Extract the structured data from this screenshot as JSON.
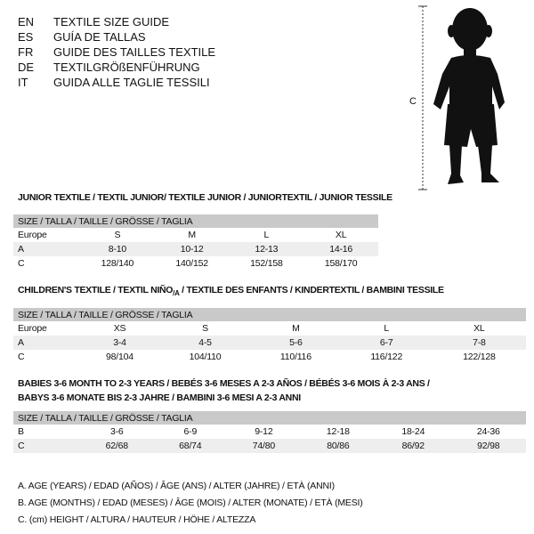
{
  "header": {
    "languages": [
      {
        "code": "EN",
        "title": "TEXTILE SIZE GUIDE"
      },
      {
        "code": "ES",
        "title": "GUÍA DE TALLAS"
      },
      {
        "code": "FR",
        "title": "GUIDE DES TAILLES TEXTILE"
      },
      {
        "code": "DE",
        "title": "TEXTILGRÖßENFÜHRUNG"
      },
      {
        "code": "IT",
        "title": "GUIDA ALLE TAGLIE TESSILI"
      }
    ]
  },
  "figure": {
    "measure_label": "C"
  },
  "junior": {
    "title": "JUNIOR TEXTILE / TEXTIL JUNIOR/ TEXTILE JUNIOR / JUNIORTEXTIL / JUNIOR TESSILE",
    "header": "SIZE / TALLA / TAILLE / GRÖSSE / TAGLIA",
    "rows": [
      {
        "label": "Europe",
        "values": [
          "S",
          "M",
          "L",
          "XL"
        ]
      },
      {
        "label": "A",
        "values": [
          "8-10",
          "10-12",
          "12-13",
          "14-16"
        ]
      },
      {
        "label": "C",
        "values": [
          "128/140",
          "140/152",
          "152/158",
          "158/170"
        ]
      }
    ]
  },
  "children": {
    "title": "CHILDREN'S TEXTILE / TEXTIL NIÑO/A / TEXTILE DES ENFANTS / KINDERTEXTIL / BAMBINI TESSILE",
    "header": "SIZE / TALLA / TAILLE / GRÖSSE / TAGLIA",
    "rows": [
      {
        "label": "Europe",
        "values": [
          "XS",
          "S",
          "M",
          "L",
          "XL"
        ]
      },
      {
        "label": "A",
        "values": [
          "3-4",
          "4-5",
          "5-6",
          "6-7",
          "7-8"
        ]
      },
      {
        "label": "C",
        "values": [
          "98/104",
          "104/110",
          "110/116",
          "116/122",
          "122/128"
        ]
      }
    ]
  },
  "babies": {
    "title_line1": "BABIES 3-6 MONTH TO 2-3 YEARS / BEBÉS 3-6 MESES A 2-3 AÑOS / BÉBÉS 3-6 MOIS À 2-3 ANS /",
    "title_line2": "BABYS 3-6 MONATE BIS 2-3 JAHRE / BAMBINI 3-6 MESI A 2-3 ANNI",
    "header": "SIZE / TALLA / TAILLE / GRÖSSE / TAGLIA",
    "rows": [
      {
        "label": "B",
        "values": [
          "3-6",
          "6-9",
          "9-12",
          "12-18",
          "18-24",
          "24-36"
        ]
      },
      {
        "label": "C",
        "values": [
          "62/68",
          "68/74",
          "74/80",
          "80/86",
          "86/92",
          "92/98"
        ]
      }
    ]
  },
  "legend": [
    "A. AGE (YEARS) / EDAD (AÑOS) / ÂGE (ANS) / ALTER (JAHRE) / ETÀ (ANNI)",
    "B. AGE (MONTHS) / EDAD (MESES) / ÂGE (MOIS) / ALTER (MONATE) / ETÀ (MESI)",
    "C. (cm) HEIGHT / ALTURA / HAUTEUR / HÖHE / ALTEZZA"
  ]
}
